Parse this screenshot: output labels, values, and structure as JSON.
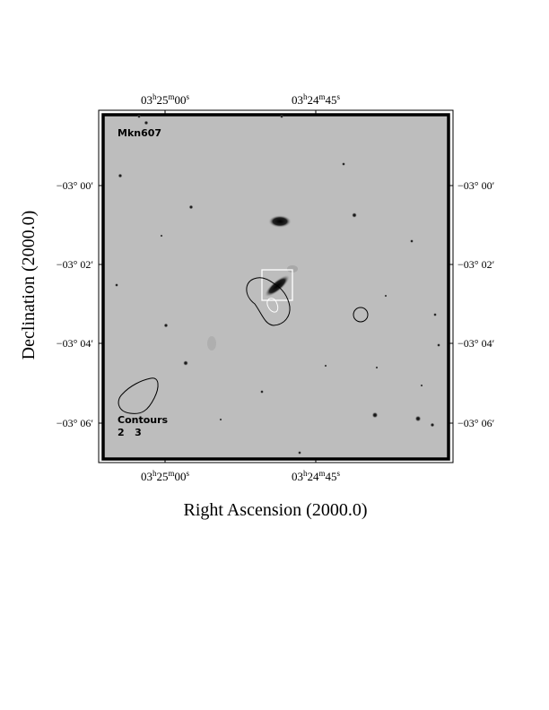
{
  "figure": {
    "object_label": "Mkn607",
    "legend_title": "Contours",
    "legend_levels": "2   3",
    "x_axis_label": "Right Ascension (2000.0)",
    "y_axis_label": "Declination (2000.0)",
    "ra_ticks": [
      {
        "h": "03",
        "m": "25",
        "s": "00"
      },
      {
        "h": "03",
        "m": "24",
        "s": "45"
      }
    ],
    "dec_ticks": [
      "−03° 00′",
      "−03° 02′",
      "−03° 04′",
      "−03° 06′"
    ],
    "colors": {
      "sky_background": "#bdbdbd",
      "contour": "#000000",
      "highlight_box": "#ffffff"
    }
  }
}
